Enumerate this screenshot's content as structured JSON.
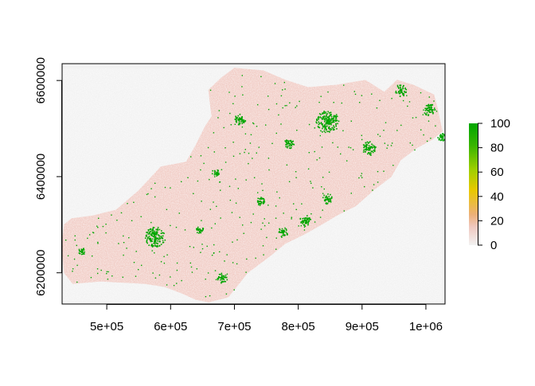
{
  "chart_data": {
    "type": "heatmap",
    "title": "",
    "xlabel": "",
    "ylabel": "",
    "xlim": [
      430000,
      1030000
    ],
    "ylim": [
      6135000,
      6635000
    ],
    "x_ticks": [
      {
        "value": 500000,
        "label": "5e+05"
      },
      {
        "value": 600000,
        "label": "6e+05"
      },
      {
        "value": 700000,
        "label": "7e+05"
      },
      {
        "value": 800000,
        "label": "8e+05"
      },
      {
        "value": 900000,
        "label": "9e+05"
      },
      {
        "value": 1000000,
        "label": "1e+06"
      }
    ],
    "y_ticks": [
      {
        "value": 6200000,
        "label": "6200000"
      },
      {
        "value": 6400000,
        "label": "6400000"
      },
      {
        "value": 6600000,
        "label": "6600000"
      }
    ],
    "background_color": "#f2f2f2",
    "base_fill_color": "#f1cdc6",
    "color_scale": {
      "min": 0,
      "max": 100,
      "ticks": [
        0,
        20,
        40,
        60,
        80,
        100
      ],
      "colors": [
        "#f2f2f2",
        "#f0c9c0",
        "#ecb079",
        "#e9c900",
        "#9fcf00",
        "#38b400",
        "#00a600"
      ],
      "placement": "right"
    },
    "region_outline": [
      [
        434000,
        6300000
      ],
      [
        445000,
        6312000
      ],
      [
        478000,
        6318000
      ],
      [
        515000,
        6330000
      ],
      [
        550000,
        6370000
      ],
      [
        585000,
        6420000
      ],
      [
        625000,
        6430000
      ],
      [
        640000,
        6465000
      ],
      [
        655000,
        6505000
      ],
      [
        665000,
        6525000
      ],
      [
        660000,
        6580000
      ],
      [
        680000,
        6605000
      ],
      [
        700000,
        6625000
      ],
      [
        745000,
        6620000
      ],
      [
        780000,
        6600000
      ],
      [
        815000,
        6585000
      ],
      [
        860000,
        6590000
      ],
      [
        905000,
        6600000
      ],
      [
        935000,
        6575000
      ],
      [
        955000,
        6600000
      ],
      [
        980000,
        6590000
      ],
      [
        1012000,
        6570000
      ],
      [
        1018000,
        6540000
      ],
      [
        1025000,
        6495000
      ],
      [
        1010000,
        6478000
      ],
      [
        985000,
        6460000
      ],
      [
        960000,
        6435000
      ],
      [
        945000,
        6400000
      ],
      [
        920000,
        6375000
      ],
      [
        890000,
        6340000
      ],
      [
        860000,
        6320000
      ],
      [
        835000,
        6300000
      ],
      [
        808000,
        6280000
      ],
      [
        780000,
        6262000
      ],
      [
        755000,
        6235000
      ],
      [
        720000,
        6200000
      ],
      [
        702000,
        6170000
      ],
      [
        690000,
        6150000
      ],
      [
        660000,
        6140000
      ],
      [
        640000,
        6145000
      ],
      [
        618000,
        6158000
      ],
      [
        590000,
        6172000
      ],
      [
        560000,
        6178000
      ],
      [
        532000,
        6180000
      ],
      [
        490000,
        6183000
      ],
      [
        447000,
        6178000
      ],
      [
        434000,
        6200000
      ],
      [
        430000,
        6255000
      ],
      [
        434000,
        6300000
      ]
    ],
    "hotspots": [
      {
        "x": 575000,
        "y": 6275000,
        "value": 100,
        "radius": 16000
      },
      {
        "x": 845000,
        "y": 6515000,
        "value": 100,
        "radius": 18000
      },
      {
        "x": 708000,
        "y": 6520000,
        "value": 100,
        "radius": 9000
      },
      {
        "x": 910000,
        "y": 6460000,
        "value": 100,
        "radius": 11000
      },
      {
        "x": 785000,
        "y": 6470000,
        "value": 100,
        "radius": 8000
      },
      {
        "x": 810000,
        "y": 6310000,
        "value": 100,
        "radius": 9000
      },
      {
        "x": 775000,
        "y": 6285000,
        "value": 100,
        "radius": 8000
      },
      {
        "x": 845000,
        "y": 6355000,
        "value": 100,
        "radius": 8000
      },
      {
        "x": 1005000,
        "y": 6540000,
        "value": 100,
        "radius": 10000
      },
      {
        "x": 1025000,
        "y": 6485000,
        "value": 100,
        "radius": 8000
      },
      {
        "x": 960000,
        "y": 6580000,
        "value": 100,
        "radius": 9000
      },
      {
        "x": 680000,
        "y": 6190000,
        "value": 100,
        "radius": 8000
      },
      {
        "x": 645000,
        "y": 6290000,
        "value": 100,
        "radius": 6000
      },
      {
        "x": 740000,
        "y": 6350000,
        "value": 100,
        "radius": 7000
      },
      {
        "x": 670000,
        "y": 6410000,
        "value": 100,
        "radius": 6000
      },
      {
        "x": 460000,
        "y": 6245000,
        "value": 100,
        "radius": 6000
      }
    ]
  }
}
